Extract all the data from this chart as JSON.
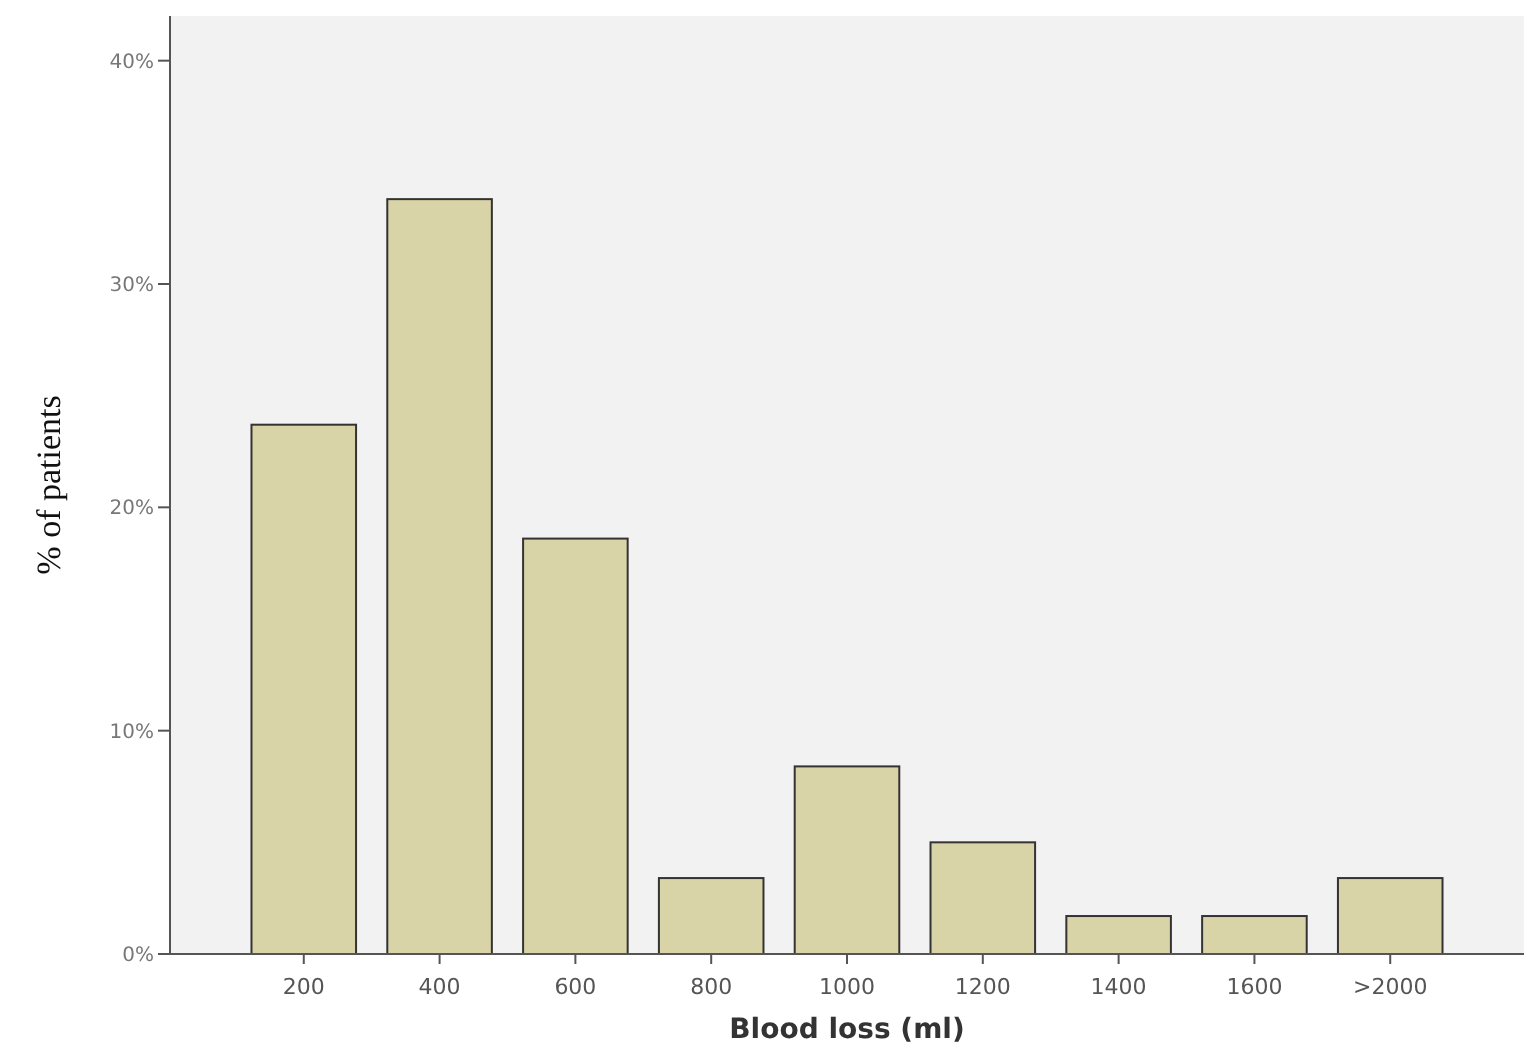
{
  "chart_data": {
    "type": "bar",
    "xlabel": "Blood loss (ml)",
    "ylabel": "% of patients",
    "categories": [
      "200",
      "400",
      "600",
      "800",
      "1000",
      "1200",
      "1400",
      "1600",
      ">2000"
    ],
    "values": [
      23.7,
      33.8,
      18.6,
      3.4,
      8.4,
      5.0,
      1.7,
      1.7,
      3.4
    ],
    "color": "#d9d4a8",
    "ylim": [
      0,
      42
    ],
    "yticks": [
      {
        "value": 0,
        "label": "0%"
      },
      {
        "value": 10,
        "label": "10%"
      },
      {
        "value": 20,
        "label": "20%"
      },
      {
        "value": 30,
        "label": "30%"
      },
      {
        "value": 40,
        "label": "40%"
      }
    ],
    "grid": false
  }
}
